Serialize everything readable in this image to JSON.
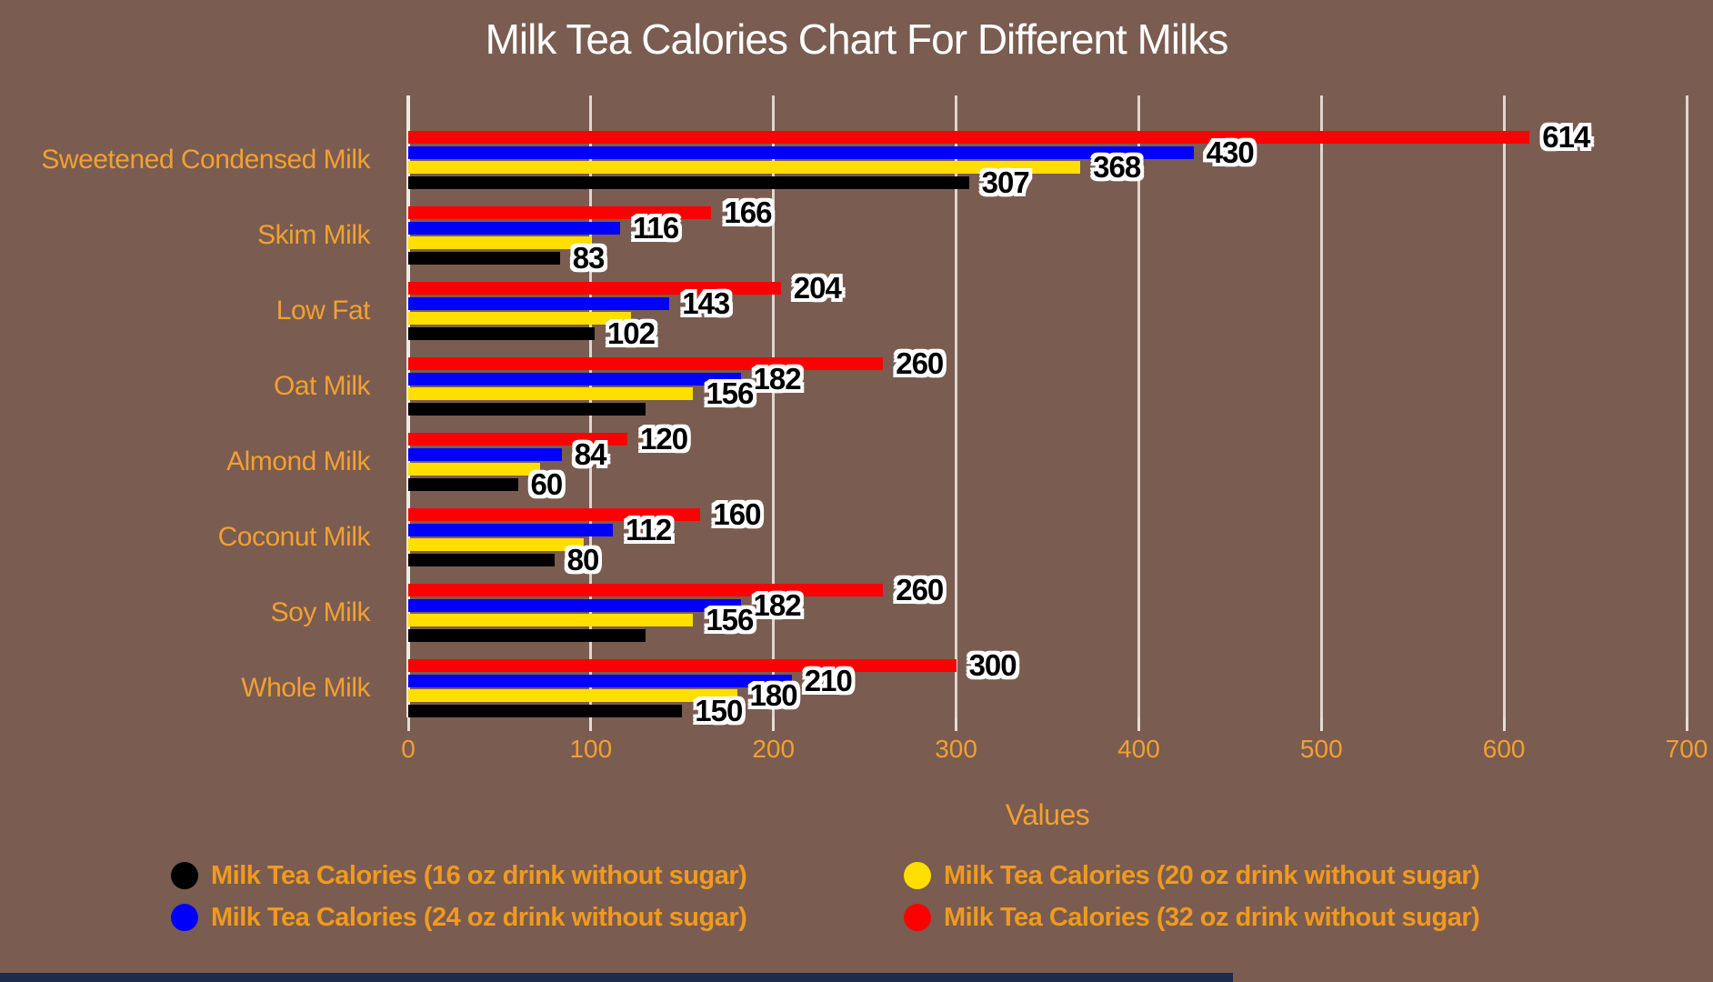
{
  "title": "Milk Tea Calories Chart For Different Milks",
  "colors": {
    "background": "#7a5c50",
    "title_text": "#ffffff",
    "axis_text": "#f2a032",
    "legend_text": "#f09a1f",
    "gridline": "#f0ebe6",
    "data_label_text": "#000000",
    "data_label_outline": "#ffffff",
    "bottom_strip": "#1e2a47"
  },
  "chart_data": {
    "type": "bar",
    "orientation": "horizontal",
    "title": "Milk Tea Calories Chart For Different Milks",
    "xlabel": "Values",
    "ylabel": "",
    "xlim": [
      0,
      700
    ],
    "xticks": [
      "0",
      "100",
      "200",
      "300",
      "400",
      "500",
      "600",
      "700"
    ],
    "grid": true,
    "legend_position": "bottom",
    "categories": [
      "Sweetened Condensed Milk",
      "Skim Milk",
      "Low Fat",
      "Oat Milk",
      "Almond Milk",
      "Coconut Milk",
      "Soy Milk",
      "Whole Milk"
    ],
    "series": [
      {
        "name": "Milk Tea Calories (16 oz drink without sugar)",
        "color": "#000000",
        "values": [
          307,
          83,
          102,
          130,
          60,
          80,
          130,
          150
        ],
        "labels": [
          "307",
          "83",
          "102",
          "",
          "60",
          "80",
          "",
          "150"
        ]
      },
      {
        "name": "Milk Tea Calories (20 oz drink without sugar)",
        "color": "#ffde00",
        "values": [
          368,
          100,
          122,
          156,
          72,
          96,
          156,
          180
        ],
        "labels": [
          "368",
          "",
          "",
          "156",
          "",
          "",
          "156",
          "180"
        ]
      },
      {
        "name": "Milk Tea Calories (24 oz drink without sugar)",
        "color": "#0000f8",
        "values": [
          430,
          116,
          143,
          182,
          84,
          112,
          182,
          210
        ],
        "labels": [
          "430",
          "116",
          "143",
          "182",
          "84",
          "112",
          "182",
          "210"
        ]
      },
      {
        "name": "Milk Tea Calories (32 oz drink without sugar)",
        "color": "#fa0202",
        "values": [
          614,
          166,
          204,
          260,
          120,
          160,
          260,
          300
        ],
        "labels": [
          "614",
          "166",
          "204",
          "260",
          "120",
          "160",
          "260",
          "300"
        ]
      }
    ]
  }
}
